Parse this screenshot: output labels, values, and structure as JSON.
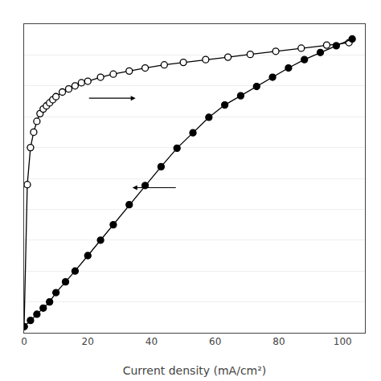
{
  "chart_data": {
    "type": "line",
    "xlabel": "Current density (mA/cm²)",
    "xlim": [
      0,
      107
    ],
    "xticks": [
      0,
      20,
      40,
      60,
      80,
      100
    ],
    "ylim": [
      0,
      1.0
    ],
    "yticks": [
      0,
      0.1,
      0.2,
      0.3,
      0.4,
      0.5,
      0.6,
      0.7,
      0.8,
      0.9,
      1.0
    ],
    "grid": "y",
    "tick_labels": "x",
    "series": [
      {
        "color": "#000000",
        "marker": "open",
        "x": [
          0,
          1,
          2,
          3,
          4,
          5,
          6,
          7,
          8,
          9,
          10,
          12,
          14,
          16,
          18,
          20,
          24,
          28,
          33,
          38,
          44,
          50,
          57,
          64,
          71,
          79,
          87,
          95,
          102
        ],
        "values": [
          0.02,
          0.48,
          0.6,
          0.65,
          0.685,
          0.71,
          0.725,
          0.735,
          0.745,
          0.755,
          0.765,
          0.78,
          0.79,
          0.8,
          0.81,
          0.815,
          0.828,
          0.838,
          0.848,
          0.858,
          0.868,
          0.876,
          0.885,
          0.893,
          0.902,
          0.912,
          0.922,
          0.932,
          0.94
        ]
      },
      {
        "color": "#000000",
        "marker": "filled",
        "x": [
          0,
          2,
          4,
          6,
          8,
          10,
          13,
          16,
          20,
          24,
          28,
          33,
          38,
          43,
          48,
          53,
          58,
          63,
          68,
          73,
          78,
          83,
          88,
          93,
          98,
          103
        ],
        "values": [
          0.02,
          0.04,
          0.06,
          0.08,
          0.1,
          0.13,
          0.165,
          0.2,
          0.25,
          0.3,
          0.35,
          0.415,
          0.477,
          0.538,
          0.598,
          0.648,
          0.698,
          0.738,
          0.768,
          0.798,
          0.828,
          0.858,
          0.885,
          0.908,
          0.93,
          0.952
        ]
      }
    ],
    "arrows": [
      {
        "x": [
          20,
          35
        ],
        "y": [
          0.76,
          0.76
        ]
      },
      {
        "x": [
          48,
          34
        ],
        "y": [
          0.47,
          0.47
        ]
      }
    ]
  }
}
